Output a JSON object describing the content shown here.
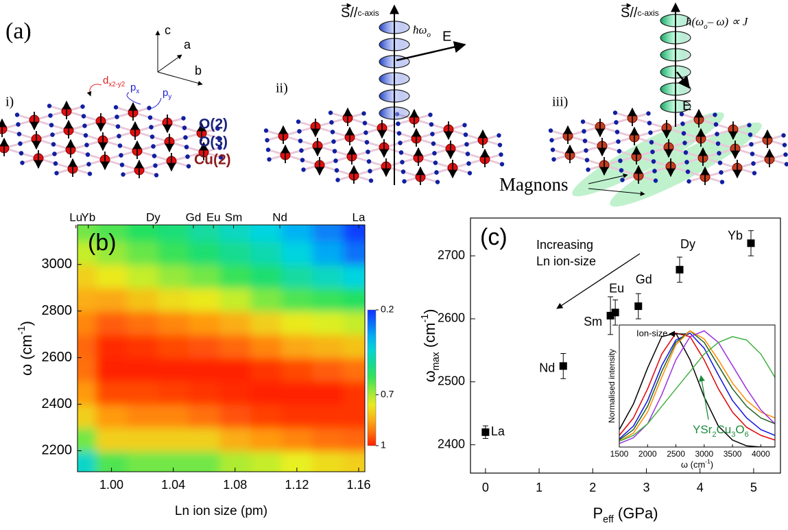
{
  "panel_labels": [
    "(a)",
    "(b)",
    "(c)"
  ],
  "diagram": {
    "sub_labels": [
      "i)",
      "ii)",
      "iii)"
    ],
    "axes": [
      "c",
      "a",
      "b"
    ],
    "orbitals": {
      "d": [
        "d",
        "x2-y2"
      ],
      "px": [
        "p",
        "x"
      ],
      "py": [
        "p",
        "y"
      ]
    },
    "sites": [
      "O(2)",
      "O(3)",
      "Cu(2)"
    ],
    "spin_axis": [
      "S",
      "//",
      "c-axis"
    ],
    "photon_in": [
      "ħω",
      "o"
    ],
    "photon_out": [
      "ħ(ω",
      "o",
      "– ω) ∝ J"
    ],
    "field": "E",
    "magnons": "Magnons"
  },
  "chart_data": [
    {
      "type": "heatmap",
      "xlabel": "Ln ion size (pm)",
      "ylabel": [
        "ω",
        " (cm",
        "-1",
        ")"
      ],
      "x": [
        0.98,
        1.0,
        1.02,
        1.04,
        1.06,
        1.08,
        1.1,
        1.12,
        1.14,
        1.16
      ],
      "y": [
        2150,
        2250,
        2350,
        2450,
        2550,
        2650,
        2750,
        2850,
        2950,
        3050,
        3150
      ],
      "z": [
        [
          0.45,
          0.62,
          0.65,
          0.65,
          0.65,
          0.7,
          0.72,
          0.75,
          0.78,
          0.8
        ],
        [
          0.65,
          0.8,
          0.8,
          0.8,
          0.8,
          0.85,
          0.88,
          0.9,
          0.92,
          0.93
        ],
        [
          0.8,
          0.88,
          0.9,
          0.9,
          0.92,
          0.95,
          0.97,
          0.98,
          0.98,
          0.98
        ],
        [
          0.88,
          0.96,
          0.96,
          0.97,
          0.98,
          0.99,
          1,
          1,
          1,
          0.98
        ],
        [
          0.92,
          1,
          1,
          1,
          1,
          1,
          0.98,
          0.96,
          0.94,
          0.92
        ],
        [
          0.93,
          0.99,
          0.98,
          0.96,
          0.95,
          0.93,
          0.9,
          0.86,
          0.84,
          0.82
        ],
        [
          0.9,
          0.94,
          0.92,
          0.9,
          0.88,
          0.85,
          0.8,
          0.76,
          0.74,
          0.72
        ],
        [
          0.85,
          0.86,
          0.82,
          0.78,
          0.76,
          0.72,
          0.66,
          0.62,
          0.6,
          0.58
        ],
        [
          0.8,
          0.76,
          0.72,
          0.68,
          0.65,
          0.6,
          0.56,
          0.5,
          0.46,
          0.42
        ],
        [
          0.72,
          0.68,
          0.64,
          0.6,
          0.56,
          0.52,
          0.48,
          0.42,
          0.35,
          0.28
        ],
        [
          0.65,
          0.62,
          0.58,
          0.55,
          0.5,
          0.46,
          0.42,
          0.36,
          0.3,
          0.22
        ]
      ],
      "xlim": [
        0.978,
        1.164
      ],
      "ylim": [
        2110,
        3170
      ],
      "xticks": [
        {
          "value": 1,
          "label": "1.00"
        },
        1.04,
        1.08,
        1.12,
        1.16
      ],
      "yticks": [
        2200,
        2400,
        2600,
        2800,
        3000
      ],
      "top_ticks": [
        {
          "value": 0.977,
          "label": "Lu"
        },
        {
          "value": 0.985,
          "label": "Yb"
        },
        {
          "value": 1.027,
          "label": "Dy"
        },
        {
          "value": 1.053,
          "label": "Gd"
        },
        {
          "value": 1.066,
          "label": "Eu"
        },
        {
          "value": 1.079,
          "label": "Sm"
        },
        {
          "value": 1.109,
          "label": "Nd"
        },
        {
          "value": 1.16,
          "label": "La"
        }
      ],
      "colorbar": {
        "clim": [
          0.2,
          1
        ],
        "ticks": [
          0.2,
          0.7,
          1
        ]
      }
    },
    {
      "type": "scatter",
      "xlabel": [
        "P",
        "eff",
        " (GPa)"
      ],
      "ylabel": [
        "ω",
        "max",
        " (cm",
        "-1",
        ")"
      ],
      "labels": [
        "La",
        "Nd",
        "Sm",
        "Eu",
        "Gd",
        "Dy",
        "Yb"
      ],
      "x": [
        0,
        1.45,
        2.33,
        2.42,
        2.85,
        3.62,
        4.95
      ],
      "values": [
        2420,
        2525,
        2605,
        2610,
        2620,
        2678,
        2720
      ],
      "errors": [
        10,
        20,
        30,
        20,
        20,
        20,
        20
      ],
      "color": "#000000",
      "xlim": [
        -0.28,
        5.5
      ],
      "ylim": [
        2355,
        2760
      ],
      "xticks": [
        0,
        1,
        2,
        3,
        4,
        5
      ],
      "yticks": [
        2400,
        2500,
        2600,
        2700
      ],
      "annotation": [
        "Increasing",
        "Ln ion-size"
      ]
    },
    {
      "type": "line",
      "ylabel": "Normalised intensity",
      "xlabel": [
        "ω",
        " (cm",
        "-1",
        ")"
      ],
      "x": [
        1500,
        1750,
        2000,
        2250,
        2500,
        2750,
        3000,
        3250,
        3500,
        3750,
        4000,
        4250
      ],
      "series": [
        {
          "color": "#000000",
          "values": [
            0.15,
            0.37,
            0.68,
            0.95,
            0.98,
            0.75,
            0.43,
            0.18,
            0.06,
            0.01,
            0,
            0
          ]
        },
        {
          "color": "#e00000",
          "values": [
            0.1,
            0.25,
            0.5,
            0.8,
            0.98,
            0.95,
            0.75,
            0.5,
            0.3,
            0.17,
            0.1,
            0.06
          ]
        },
        {
          "color": "#1010e0",
          "values": [
            0.07,
            0.18,
            0.4,
            0.7,
            0.92,
            0.98,
            0.85,
            0.62,
            0.4,
            0.25,
            0.15,
            0.1
          ]
        },
        {
          "color": "#206020",
          "values": [
            0.06,
            0.15,
            0.35,
            0.65,
            0.9,
            1,
            0.9,
            0.7,
            0.5,
            0.35,
            0.25,
            0.2
          ]
        },
        {
          "color": "#ff8c00",
          "values": [
            0.05,
            0.12,
            0.3,
            0.6,
            0.88,
            1,
            0.93,
            0.75,
            0.55,
            0.4,
            0.3,
            0.25
          ]
        },
        {
          "color": "#9b30e0",
          "values": [
            0.03,
            0.08,
            0.2,
            0.45,
            0.75,
            0.95,
            1,
            0.9,
            0.7,
            0.5,
            0.32,
            0.2
          ]
        },
        {
          "color": "#40b040",
          "values": [
            0.05,
            0.1,
            0.2,
            0.35,
            0.5,
            0.65,
            0.8,
            0.9,
            0.95,
            0.92,
            0.8,
            0.6
          ]
        }
      ],
      "xlim": [
        1500,
        4250
      ],
      "ylim": [
        0,
        1.05
      ],
      "xticks": [
        1500,
        2000,
        2500,
        3000,
        3500,
        4000
      ],
      "annotations": {
        "ion_size": "Ion-size",
        "compound": [
          "YSr",
          "2",
          "Cu",
          "3",
          "O",
          "6"
        ]
      }
    }
  ]
}
